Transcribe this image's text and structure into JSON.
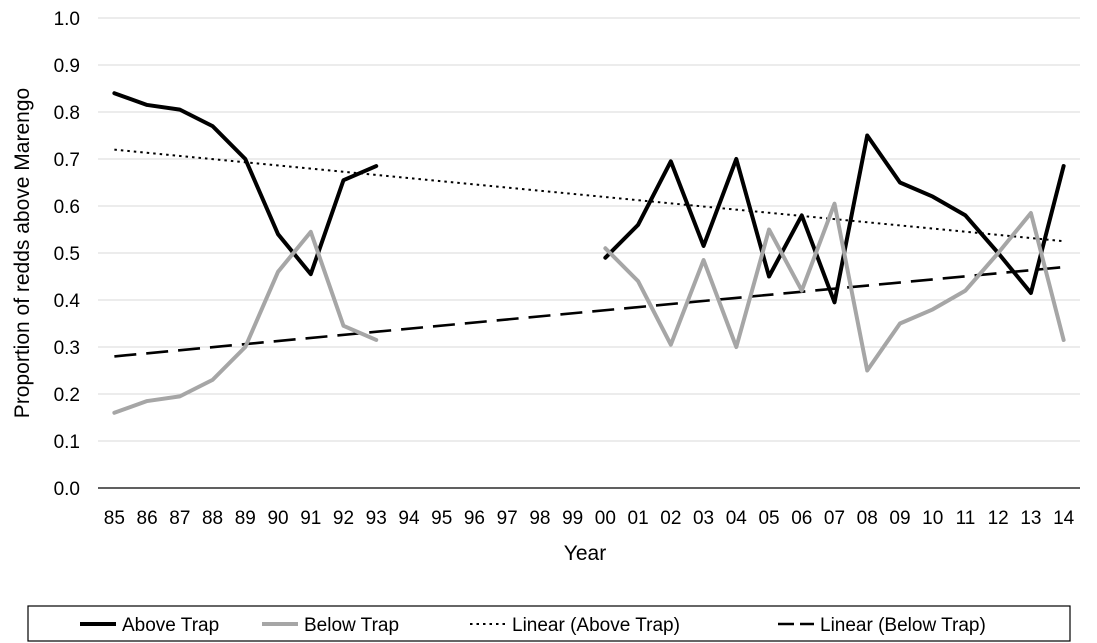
{
  "chart_data": {
    "type": "line",
    "title": "",
    "xlabel": "Year",
    "ylabel": "Proportion of redds above Marengo",
    "ylim": [
      0,
      1.0
    ],
    "yticks": [
      "0.0",
      "0.1",
      "0.2",
      "0.3",
      "0.4",
      "0.5",
      "0.6",
      "0.7",
      "0.8",
      "0.9",
      "1.0"
    ],
    "grid": "horizontal",
    "legend_position": "bottom",
    "categories": [
      "85",
      "86",
      "87",
      "88",
      "89",
      "90",
      "91",
      "92",
      "93",
      "94",
      "95",
      "96",
      "97",
      "98",
      "99",
      "00",
      "01",
      "02",
      "03",
      "04",
      "05",
      "06",
      "07",
      "08",
      "09",
      "10",
      "11",
      "12",
      "13",
      "14"
    ],
    "series": [
      {
        "name": "Above Trap",
        "color": "#000000",
        "style": "solid",
        "values": [
          0.84,
          0.815,
          0.805,
          0.77,
          0.7,
          0.54,
          0.455,
          0.655,
          0.685,
          null,
          null,
          null,
          null,
          null,
          null,
          0.49,
          0.56,
          0.695,
          0.515,
          0.7,
          0.45,
          0.58,
          0.395,
          0.75,
          0.65,
          0.62,
          0.58,
          0.5,
          0.415,
          0.685
        ]
      },
      {
        "name": "Below Trap",
        "color": "#a6a6a6",
        "style": "solid",
        "values": [
          0.16,
          0.185,
          0.195,
          0.23,
          0.3,
          0.46,
          0.545,
          0.345,
          0.315,
          null,
          null,
          null,
          null,
          null,
          null,
          0.51,
          0.44,
          0.305,
          0.485,
          0.3,
          0.55,
          0.42,
          0.605,
          0.25,
          0.35,
          0.38,
          0.42,
          0.5,
          0.585,
          0.315
        ]
      }
    ],
    "trendlines": [
      {
        "name": "Linear (Above Trap)",
        "color": "#000000",
        "style": "dotted",
        "start": 0.72,
        "end": 0.525
      },
      {
        "name": "Linear (Below Trap)",
        "color": "#000000",
        "style": "dashed",
        "start": 0.28,
        "end": 0.47
      }
    ]
  }
}
